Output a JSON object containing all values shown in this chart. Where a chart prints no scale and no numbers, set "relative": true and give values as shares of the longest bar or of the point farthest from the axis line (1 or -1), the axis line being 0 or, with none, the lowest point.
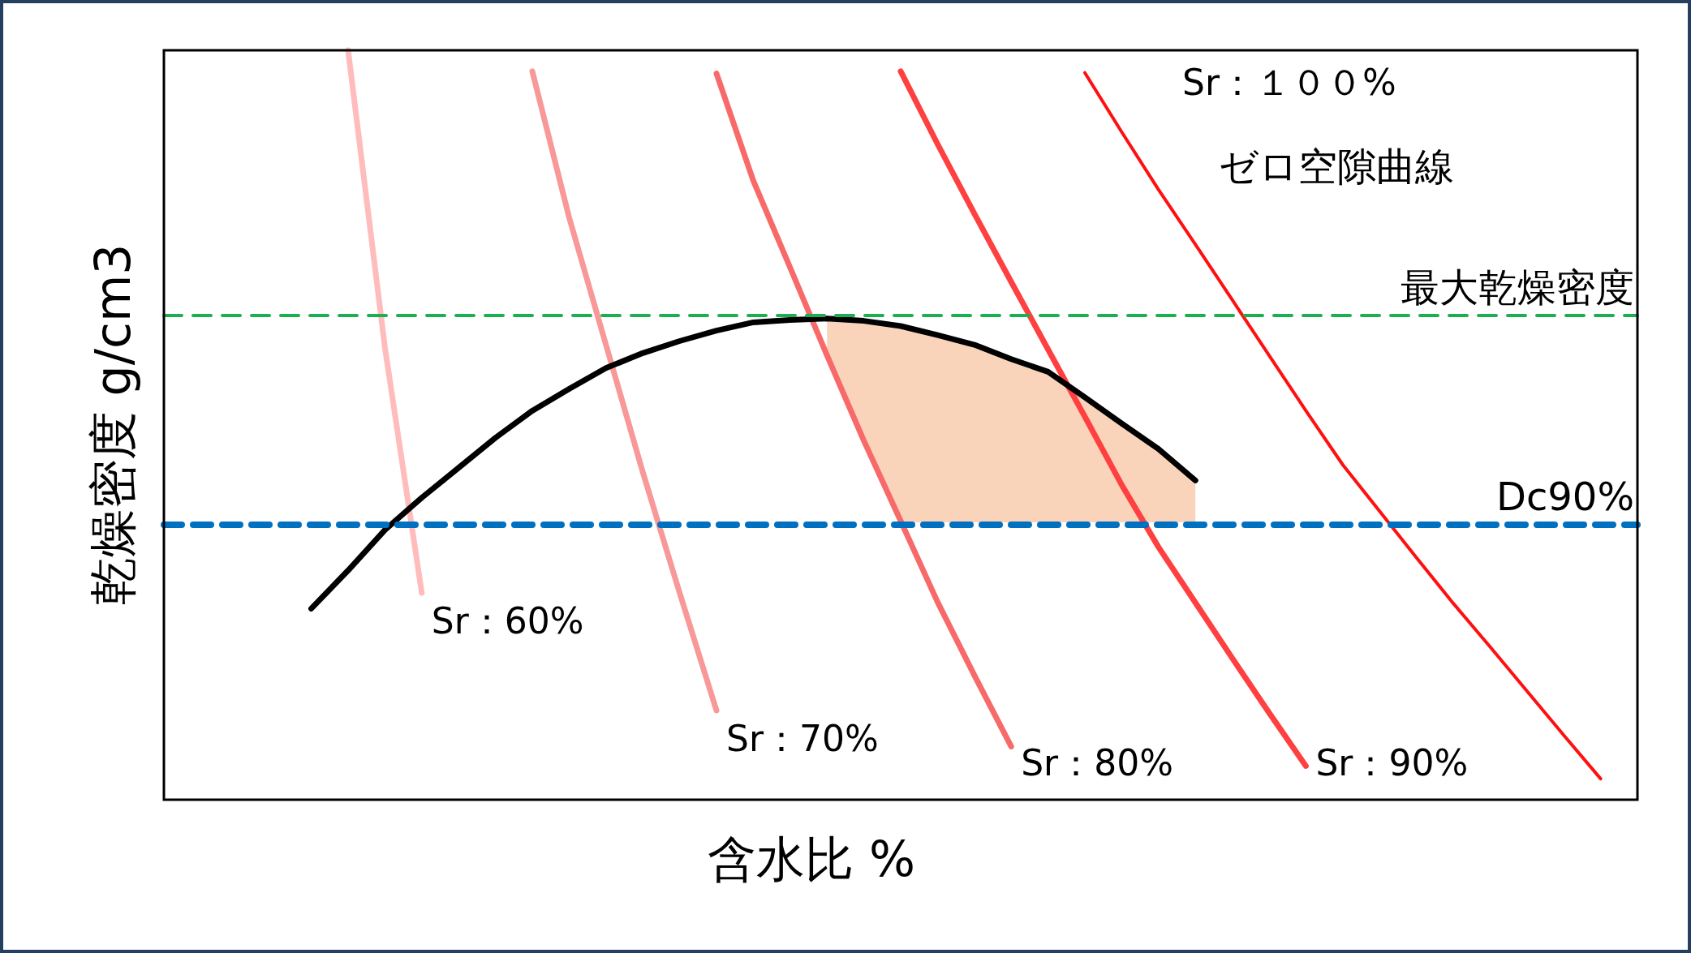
{
  "chart_data": {
    "type": "line",
    "relative": true,
    "xlabel": "含水比 %",
    "ylabel": "乾燥密度 g/cm3",
    "categories": [
      null,
      null,
      null,
      null,
      null,
      null,
      null,
      null,
      null,
      null,
      null,
      null,
      null,
      null,
      null,
      null,
      null,
      null,
      null,
      null,
      null,
      null,
      null,
      null,
      null,
      null,
      null,
      null,
      null,
      null,
      null,
      null,
      null,
      null,
      null,
      null,
      null,
      null,
      null,
      null,
      null
    ],
    "series": [
      {
        "name": "Sr：60%",
        "color": "#ffbcbc",
        "values": [
          null,
          null,
          null,
          null,
          null,
          1,
          0.603,
          0.276,
          null,
          null,
          null,
          null,
          null,
          null,
          null,
          null,
          null,
          null,
          null,
          null,
          null,
          null,
          null,
          null,
          null,
          null,
          null,
          null,
          null,
          null,
          null,
          null,
          null,
          null,
          null,
          null,
          null,
          null,
          null,
          null,
          null
        ]
      },
      {
        "name": "Sr：70%",
        "color": "#f89898",
        "values": [
          null,
          null,
          null,
          null,
          null,
          null,
          null,
          null,
          null,
          null,
          0.972,
          0.777,
          0.607,
          0.437,
          0.276,
          0.119,
          null,
          null,
          null,
          null,
          null,
          null,
          null,
          null,
          null,
          null,
          null,
          null,
          null,
          null,
          null,
          null,
          null,
          null,
          null,
          null,
          null,
          null,
          null,
          null,
          null
        ]
      },
      {
        "name": "Sr：80%",
        "color": "#f86a6a",
        "values": [
          null,
          null,
          null,
          null,
          null,
          null,
          null,
          null,
          null,
          null,
          null,
          null,
          null,
          null,
          null,
          0.969,
          0.826,
          0.71,
          0.593,
          0.479,
          0.372,
          0.264,
          0.166,
          0.071,
          null,
          null,
          null,
          null,
          null,
          null,
          null,
          null,
          null,
          null,
          null,
          null,
          null,
          null,
          null,
          null,
          null
        ]
      },
      {
        "name": "Sr：90%",
        "color": "#ff4040",
        "values": [
          null,
          null,
          null,
          null,
          null,
          null,
          null,
          null,
          null,
          null,
          null,
          null,
          null,
          null,
          null,
          null,
          null,
          null,
          null,
          null,
          0.972,
          0.875,
          0.782,
          0.691,
          0.601,
          0.511,
          0.42,
          0.337,
          0.263,
          0.189,
          0.116,
          0.045,
          null,
          null,
          null,
          null,
          null,
          null,
          null,
          null,
          null
        ]
      },
      {
        "name": "Sr：１００%",
        "color": "#ff1010",
        "values": [
          null,
          null,
          null,
          null,
          null,
          null,
          null,
          null,
          null,
          null,
          null,
          null,
          null,
          null,
          null,
          null,
          null,
          null,
          null,
          null,
          null,
          null,
          null,
          null,
          null,
          0.97,
          0.891,
          0.814,
          0.741,
          0.667,
          0.593,
          0.519,
          0.447,
          0.385,
          0.323,
          0.262,
          0.204,
          0.145,
          0.086,
          0.028,
          null
        ]
      },
      {
        "color": "#000000",
        "values": [
          null,
          null,
          null,
          null,
          0.255,
          0.306,
          0.36,
          0.403,
          0.443,
          0.483,
          0.519,
          0.548,
          0.576,
          0.596,
          0.612,
          0.626,
          0.637,
          0.64,
          0.642,
          0.639,
          0.632,
          0.62,
          0.607,
          0.588,
          0.571,
          0.537,
          0.502,
          0.468,
          0.426,
          null,
          null,
          null,
          null,
          null,
          null,
          null,
          null,
          null,
          null,
          null,
          null
        ],
        "upper": [
          null,
          null,
          null,
          null,
          null,
          null,
          null,
          null,
          null,
          null,
          null,
          null,
          null,
          null,
          null,
          null,
          null,
          null,
          0.642,
          0.639,
          0.632,
          0.62,
          0.607,
          0.588,
          0.571,
          0.537,
          0.502,
          0.468,
          0.426,
          null,
          null,
          null,
          null,
          null,
          null,
          null,
          null,
          null,
          null,
          null,
          null
        ],
        "lower": [
          null,
          null,
          null,
          null,
          null,
          null,
          null,
          null,
          null,
          null,
          null,
          null,
          null,
          null,
          null,
          null,
          null,
          null,
          0.593,
          0.479,
          0.37,
          0.37,
          0.37,
          0.37,
          0.37,
          0.37,
          0.37,
          0.37,
          0.37,
          null,
          null,
          null,
          null,
          null,
          null,
          null,
          null,
          null,
          null,
          null,
          null
        ]
      }
    ],
    "ref_lines": [
      {
        "axis": "y",
        "value": 0.646,
        "label": "最大乾燥密度",
        "color": "#1aaf50",
        "line_style": "dashed"
      },
      {
        "axis": "y",
        "value": 0.367,
        "label": "Dc90%",
        "color": "#0070c0",
        "line_style": "dashed"
      }
    ],
    "annotations": [
      "ゼロ空隙曲線"
    ]
  }
}
